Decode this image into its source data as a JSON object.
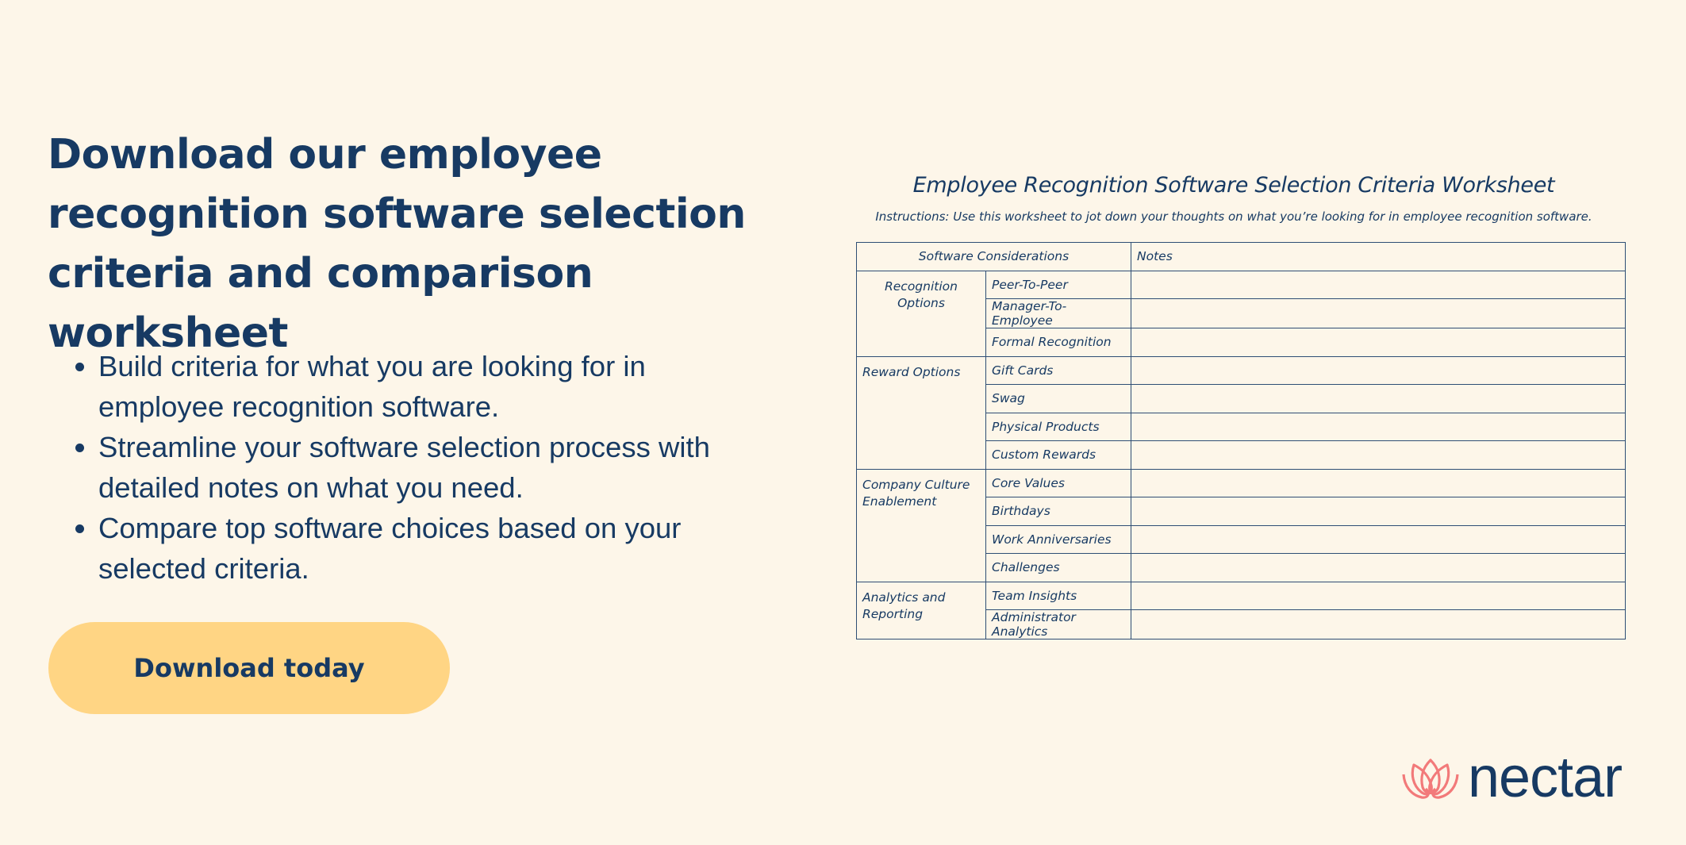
{
  "headline": "Download our employee recognition software selection criteria and comparison worksheet",
  "bullets": [
    "Build criteria for what you are looking for in employee recognition software.",
    "Streamline your software selection process with detailed notes on what you need.",
    "Compare top software choices based on your selected criteria."
  ],
  "cta_label": "Download today",
  "worksheet": {
    "title": "Employee Recognition Software Selection Criteria Worksheet",
    "instructions": "Instructions: Use this worksheet to jot down your thoughts on what you’re looking for in employee recognition software.",
    "header_considerations": "Software Considerations",
    "header_notes": "Notes",
    "groups": [
      {
        "category": "Recognition Options",
        "items": [
          "Peer-To-Peer",
          "Manager-To-Employee",
          "Formal Recognition"
        ]
      },
      {
        "category": "Reward Options",
        "items": [
          "Gift Cards",
          "Swag",
          "Physical Products",
          "Custom Rewards"
        ]
      },
      {
        "category": "Company Culture Enablement",
        "items": [
          "Core Values",
          "Birthdays",
          "Work Anniversaries",
          "Challenges"
        ]
      },
      {
        "category": "Analytics and Reporting",
        "items": [
          "Team Insights",
          "Administrator Analytics"
        ]
      }
    ]
  },
  "logo": {
    "wordmark": "nectar",
    "icon": "lotus-icon",
    "icon_color": "#f27a7a"
  },
  "colors": {
    "background": "#fdf6e9",
    "text": "#173a63",
    "button": "#ffd584"
  }
}
